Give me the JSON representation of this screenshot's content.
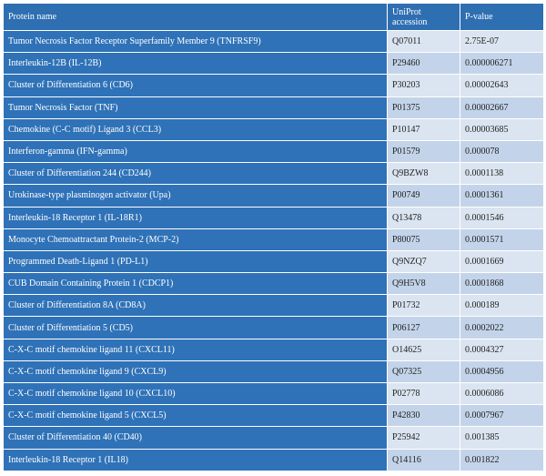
{
  "table": {
    "header": [
      "Protein name",
      "UniProt accession",
      "P-value"
    ],
    "rows": [
      [
        "Tumor Necrosis Factor Receptor Superfamily Member 9 (TNFRSF9)",
        "Q07011",
        "2.75E-07"
      ],
      [
        "Interleukin-12B (IL-12B)",
        "P29460",
        "0.000006271"
      ],
      [
        "Cluster of Differentiation 6 (CD6)",
        "P30203",
        "0.00002643"
      ],
      [
        "Tumor Necrosis Factor (TNF)",
        "P01375",
        "0.00002667"
      ],
      [
        "Chemokine (C-C motif) Ligand 3 (CCL3)",
        "P10147",
        "0.00003685"
      ],
      [
        "Interferon-gamma (IFN-gamma)",
        "P01579",
        "0.000078"
      ],
      [
        "Cluster of Differentiation 244 (CD244)",
        "Q9BZW8",
        "0.0001138"
      ],
      [
        "Urokinase-type plasminogen activator (Upa)",
        "P00749",
        "0.0001361"
      ],
      [
        "Interleukin-18 Receptor 1 (IL-18R1)",
        "Q13478",
        "0.0001546"
      ],
      [
        "Monocyte Chemoattractant Protein-2 (MCP-2)",
        "P80075",
        "0.0001571"
      ],
      [
        "Programmed Death-Ligand 1 (PD-L1)",
        "Q9NZQ7",
        "0.0001669"
      ],
      [
        "CUB Domain Containing Protein 1 (CDCP1)",
        "Q9H5V8",
        "0.0001868"
      ],
      [
        "Cluster of Differentiation 8A (CD8A)",
        "P01732",
        "0.000189"
      ],
      [
        "Cluster of Differentiation 5 (CD5)",
        "P06127",
        "0.0002022"
      ],
      [
        "C-X-C motif chemokine ligand 11 (CXCL11)",
        "O14625",
        "0.0004327"
      ],
      [
        "C-X-C motif chemokine ligand 9 (CXCL9)",
        "Q07325",
        "0.0004956"
      ],
      [
        "C-X-C motif chemokine ligand 10 (CXCL10)",
        "P02778",
        "0.0006086"
      ],
      [
        "C-X-C motif chemokine ligand 5 (CXCL5)",
        "P42830",
        "0.0007967"
      ],
      [
        "Cluster of Differentiation 40 (CD40)",
        "P25942",
        "0.001385"
      ],
      [
        "Interleukin-18 Receptor 1 (IL18)",
        "Q14116",
        "0.001822"
      ]
    ]
  }
}
